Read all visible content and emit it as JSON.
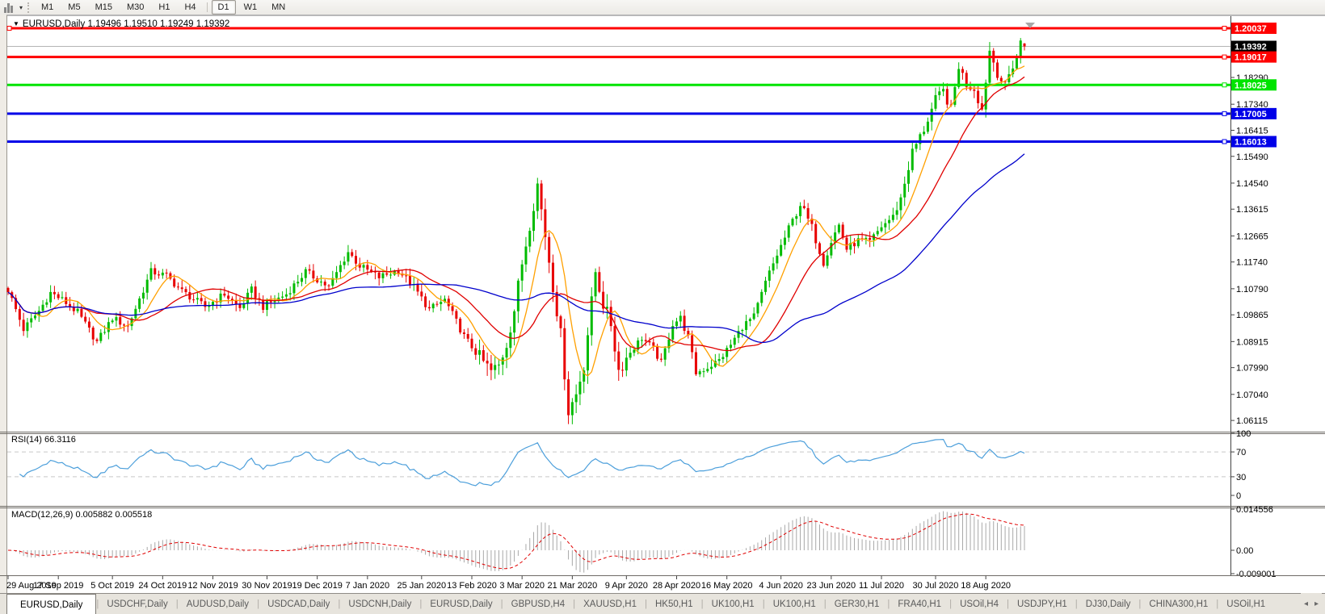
{
  "toolbar": {
    "timeframes": [
      "M1",
      "M5",
      "M15",
      "M30",
      "H1",
      "H4",
      "D1",
      "W1",
      "MN"
    ],
    "selected_timeframe": "D1"
  },
  "window": {
    "title_symbol": "EURUSD,Daily",
    "title_ohlc": "1.19496 1.19510 1.19249 1.19392",
    "symbol_marker": "▼"
  },
  "indicators": {
    "rsi": {
      "label": "RSI(14) 66.3116",
      "period": 14,
      "last_value": 66.3116
    },
    "macd": {
      "label": "MACD(12,26,9) 0.005882 0.005518",
      "fast": 12,
      "slow": 26,
      "signal": 9,
      "macd_value": 0.005882,
      "signal_value": 0.005518
    }
  },
  "colors": {
    "bull": "#00BB00",
    "bear": "#E80000",
    "ma_fast": "#FFA000",
    "ma_mid": "#E00000",
    "ma_slow": "#0000CC",
    "hline_red": "#FF0000",
    "hline_green": "#00E400",
    "hline_blue": "#0000E8",
    "price_line": "#B4B4B4",
    "current_label_bg": "#000000",
    "rsi_line": "#4C9FDB",
    "rsi_levels": "#C8C8C8",
    "macd_hist": "#A8A8A8",
    "macd_signal": "#E00000",
    "pane_border": "#6E6B66",
    "axis_text": "#000000"
  },
  "chart_data": {
    "type": "candlestick",
    "symbol": "EURUSD",
    "timeframe": "Daily",
    "current_price": 1.19392,
    "current_price_label": "1.19392",
    "last_candle": {
      "open": 1.19496,
      "high": 1.1951,
      "low": 1.19249,
      "close": 1.19392
    },
    "candle_count": 264,
    "x_labels": [
      "29 Aug 2019",
      "17 Sep 2019",
      "5 Oct 2019",
      "24 Oct 2019",
      "12 Nov 2019",
      "30 Nov 2019",
      "19 Dec 2019",
      "7 Jan 2020",
      "25 Jan 2020",
      "13 Feb 2020",
      "3 Mar 2020",
      "21 Mar 2020",
      "9 Apr 2020",
      "28 Apr 2020",
      "16 May 2020",
      "4 Jun 2020",
      "23 Jun 2020",
      "11 Jul 2020",
      "30 Jul 2020",
      "18 Aug 2020"
    ],
    "y_ticks": [
      1.1829,
      1.1734,
      1.16415,
      1.1549,
      1.1454,
      1.13615,
      1.12665,
      1.1174,
      1.1079,
      1.09865,
      1.08915,
      1.0799,
      1.0704,
      1.06115
    ],
    "horizontal_lines": [
      {
        "price": 1.20037,
        "label": "1.20037",
        "color": "red"
      },
      {
        "price": 1.19017,
        "label": "1.19017",
        "color": "red"
      },
      {
        "price": 1.18025,
        "label": "1.18025",
        "color": "green"
      },
      {
        "price": 1.17005,
        "label": "1.17005",
        "color": "blue"
      },
      {
        "price": 1.16013,
        "label": "1.16013",
        "color": "blue"
      }
    ],
    "moving_averages": [
      {
        "estimated_period": 8,
        "color_key": "ma_fast"
      },
      {
        "estimated_period": 20,
        "color_key": "ma_mid"
      },
      {
        "estimated_period": 55,
        "color_key": "ma_slow"
      }
    ],
    "close_anchors": [
      [
        0,
        1.1075
      ],
      [
        4,
        1.0935
      ],
      [
        8,
        1.1
      ],
      [
        11,
        1.1065
      ],
      [
        14,
        1.104
      ],
      [
        18,
        1.0995
      ],
      [
        23,
        1.089
      ],
      [
        27,
        1.0975
      ],
      [
        31,
        1.0945
      ],
      [
        37,
        1.114
      ],
      [
        41,
        1.1125
      ],
      [
        45,
        1.107
      ],
      [
        51,
        1.1015
      ],
      [
        56,
        1.106
      ],
      [
        60,
        1.101
      ],
      [
        63,
        1.1075
      ],
      [
        66,
        1.1015
      ],
      [
        72,
        1.106
      ],
      [
        77,
        1.114
      ],
      [
        83,
        1.1085
      ],
      [
        88,
        1.121
      ],
      [
        91,
        1.116
      ],
      [
        96,
        1.112
      ],
      [
        101,
        1.1145
      ],
      [
        105,
        1.1085
      ],
      [
        109,
        1.1005
      ],
      [
        113,
        1.104
      ],
      [
        118,
        1.091
      ],
      [
        122,
        1.0835
      ],
      [
        125,
        1.0785
      ],
      [
        127,
        1.0805
      ],
      [
        129,
        1.0885
      ],
      [
        131,
        1.1005
      ],
      [
        133,
        1.117
      ],
      [
        135,
        1.131
      ],
      [
        137,
        1.145
      ],
      [
        139,
        1.127
      ],
      [
        141,
        1.109
      ],
      [
        143,
        1.0915
      ],
      [
        145,
        1.0645
      ],
      [
        147,
        1.0705
      ],
      [
        149,
        1.081
      ],
      [
        151,
        1.103
      ],
      [
        152,
        1.114
      ],
      [
        154,
        1.1025
      ],
      [
        156,
        1.0955
      ],
      [
        158,
        1.079
      ],
      [
        161,
        1.0855
      ],
      [
        164,
        1.0905
      ],
      [
        167,
        1.0865
      ],
      [
        169,
        1.0815
      ],
      [
        172,
        1.0955
      ],
      [
        174,
        1.0975
      ],
      [
        176,
        1.0905
      ],
      [
        178,
        1.078
      ],
      [
        181,
        1.08
      ],
      [
        184,
        1.0825
      ],
      [
        187,
        1.088
      ],
      [
        190,
        1.0945
      ],
      [
        193,
        1.098
      ],
      [
        196,
        1.11
      ],
      [
        199,
        1.12
      ],
      [
        202,
        1.129
      ],
      [
        205,
        1.138
      ],
      [
        208,
        1.1295
      ],
      [
        211,
        1.1175
      ],
      [
        213,
        1.125
      ],
      [
        215,
        1.1305
      ],
      [
        217,
        1.122
      ],
      [
        220,
        1.125
      ],
      [
        223,
        1.1245
      ],
      [
        226,
        1.13
      ],
      [
        229,
        1.1335
      ],
      [
        231,
        1.14
      ],
      [
        234,
        1.1565
      ],
      [
        237,
        1.1645
      ],
      [
        240,
        1.175
      ],
      [
        242,
        1.178
      ],
      [
        244,
        1.1715
      ],
      [
        246,
        1.187
      ],
      [
        248,
        1.1805
      ],
      [
        250,
        1.179
      ],
      [
        252,
        1.1715
      ],
      [
        254,
        1.1925
      ],
      [
        256,
        1.1845
      ],
      [
        258,
        1.1795
      ],
      [
        259,
        1.1838
      ],
      [
        261,
        1.1905
      ],
      [
        262,
        1.196
      ],
      [
        263,
        1.19392
      ]
    ],
    "rsi_panel": {
      "ticks": [
        100,
        70,
        30,
        0
      ],
      "levels": [
        70,
        30
      ],
      "last_value": 66.3116
    },
    "macd_panel": {
      "tick_labels": [
        "0.014556",
        "0.00",
        "-0.009001"
      ],
      "tick_values": [
        0.014556,
        0,
        -0.009001
      ]
    }
  },
  "tabs": {
    "items": [
      {
        "label": "EURUSD,Daily",
        "active": true
      },
      {
        "label": "USDCHF,Daily",
        "active": false
      },
      {
        "label": "AUDUSD,Daily",
        "active": false
      },
      {
        "label": "USDCAD,Daily",
        "active": false
      },
      {
        "label": "USDCNH,Daily",
        "active": false
      },
      {
        "label": "EURUSD,Daily",
        "active": false
      },
      {
        "label": "GBPUSD,H4",
        "active": false
      },
      {
        "label": "XAUUSD,H1",
        "active": false
      },
      {
        "label": "HK50,H1",
        "active": false
      },
      {
        "label": "UK100,H1",
        "active": false
      },
      {
        "label": "UK100,H1",
        "active": false
      },
      {
        "label": "GER30,H1",
        "active": false
      },
      {
        "label": "FRA40,H1",
        "active": false
      },
      {
        "label": "USOil,H4",
        "active": false
      },
      {
        "label": "USDJPY,H1",
        "active": false
      },
      {
        "label": "DJ30,Daily",
        "active": false
      },
      {
        "label": "CHINA300,H1",
        "active": false
      },
      {
        "label": "USOil,H1",
        "active": false
      }
    ],
    "scroll_left": "◂",
    "scroll_right": "▸"
  }
}
